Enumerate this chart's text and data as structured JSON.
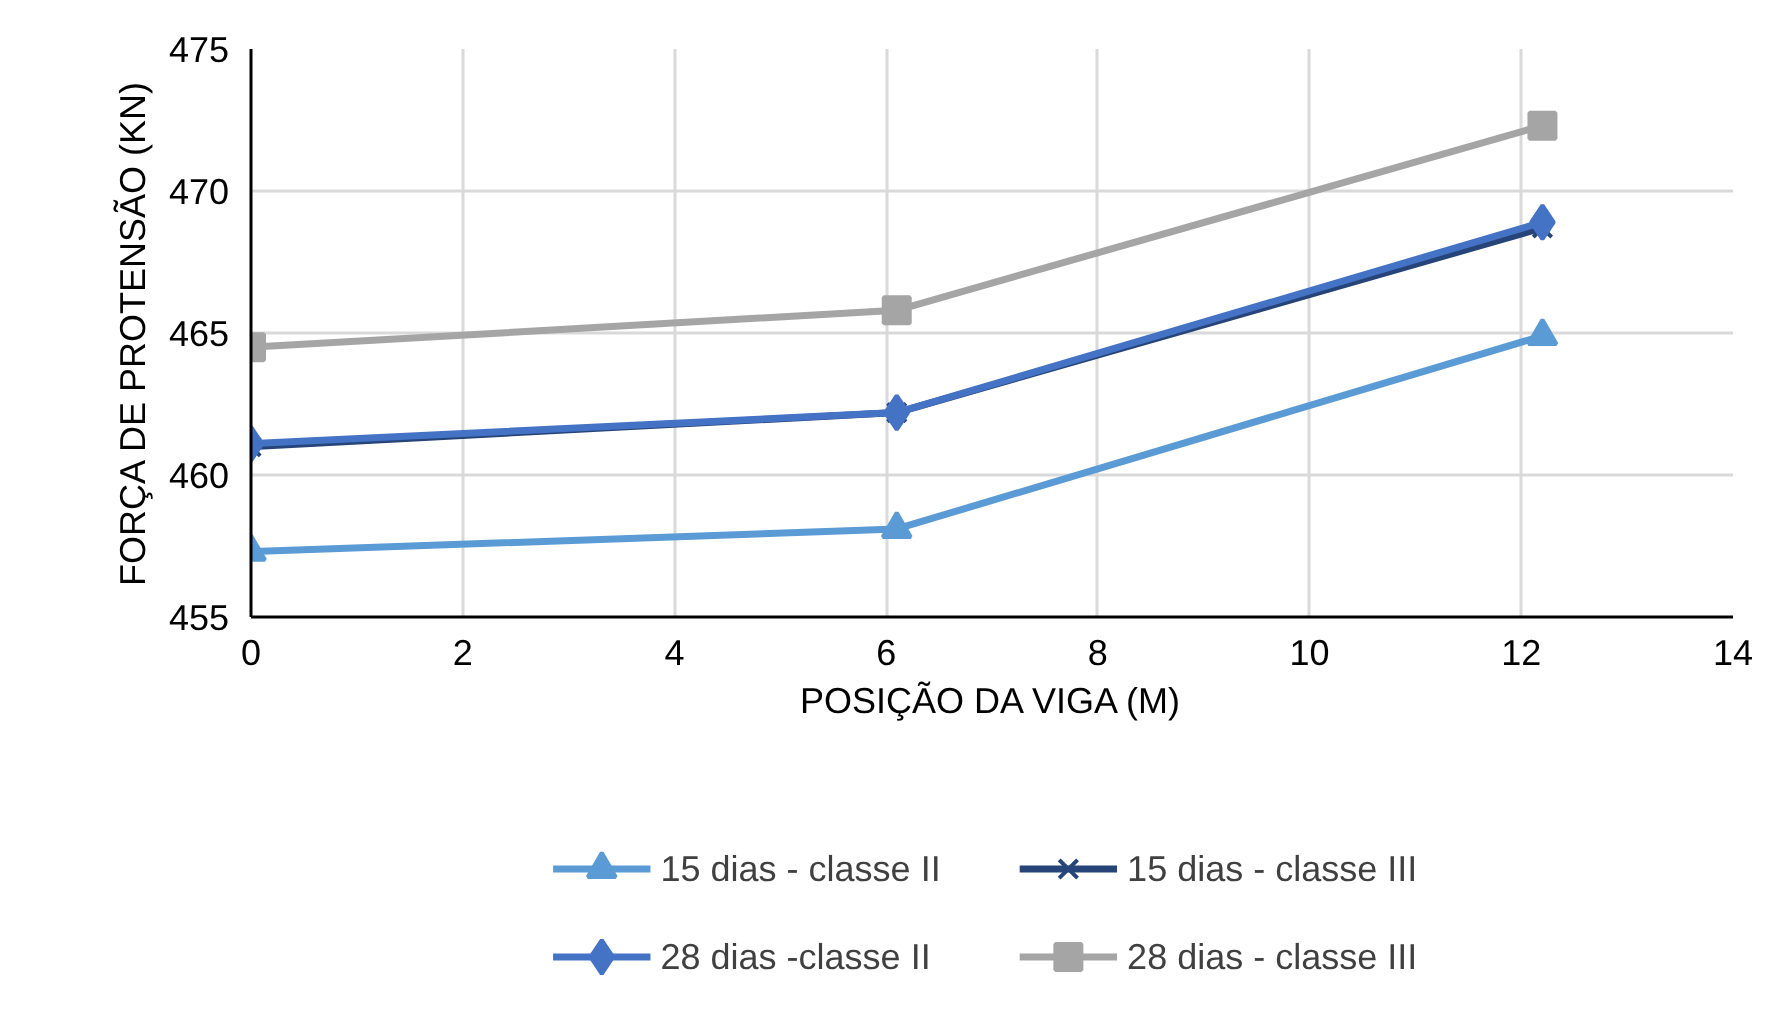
{
  "chart_data": {
    "type": "line",
    "xlabel": "POSIÇÃO DA VIGA (M)",
    "ylabel": "FORÇA DE PROTENSÃO (KN)",
    "x": [
      0,
      6.1,
      12.2
    ],
    "series": [
      {
        "name": "15 dias - classe II",
        "color": "#5b9bd5",
        "marker": "triangle",
        "values": [
          457.3,
          458.1,
          464.9
        ]
      },
      {
        "name": "15 dias - classe III",
        "color": "#264478",
        "marker": "cross",
        "values": [
          461.0,
          462.2,
          468.7
        ]
      },
      {
        "name": "28 dias -classe II",
        "color": "#4472c4",
        "marker": "diamond",
        "values": [
          461.1,
          462.2,
          468.9
        ]
      },
      {
        "name": "28 dias - classe III",
        "color": "#a5a5a5",
        "marker": "square",
        "values": [
          464.5,
          465.8,
          472.3
        ]
      }
    ],
    "xlim": [
      0,
      14
    ],
    "xticks": [
      0,
      2,
      4,
      6,
      8,
      10,
      12,
      14
    ],
    "ylim": [
      455,
      475
    ],
    "yticks": [
      455,
      460,
      465,
      470,
      475
    ],
    "grid": true,
    "legend": "bottom",
    "line_style": "solid"
  }
}
